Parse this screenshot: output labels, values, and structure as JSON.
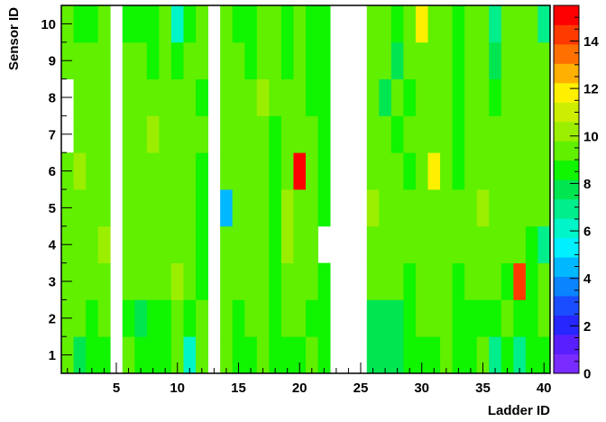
{
  "chart_data": {
    "type": "heatmap",
    "xlabel": "Ladder ID",
    "ylabel": "Sensor ID",
    "x_range": [
      0.5,
      40.5
    ],
    "y_range": [
      0.5,
      10.5
    ],
    "x_ticks": [
      5,
      10,
      15,
      20,
      25,
      30,
      35,
      40
    ],
    "y_ticks": [
      1,
      2,
      3,
      4,
      5,
      6,
      7,
      8,
      9,
      10
    ],
    "z_range": [
      0,
      15.5
    ],
    "colorbar_ticks": [
      0,
      2,
      4,
      6,
      8,
      10,
      12,
      14
    ],
    "colorbar_colors": [
      "#7a2bff",
      "#5a1fff",
      "#2626ff",
      "#1a4dff",
      "#0a84ff",
      "#00b8ff",
      "#00f0ff",
      "#00f5c8",
      "#00ee8c",
      "#00e650",
      "#10f500",
      "#60f000",
      "#9cee00",
      "#ccee00",
      "#fff000",
      "#ffb000",
      "#ff7000",
      "#ff3a00",
      "#ff0000"
    ],
    "x": [
      1,
      2,
      3,
      4,
      5,
      6,
      7,
      8,
      9,
      10,
      11,
      12,
      13,
      14,
      15,
      16,
      17,
      18,
      19,
      20,
      21,
      22,
      23,
      24,
      25,
      26,
      27,
      28,
      29,
      30,
      31,
      32,
      33,
      34,
      35,
      36,
      37,
      38,
      39,
      40
    ],
    "y": [
      1,
      2,
      3,
      4,
      5,
      6,
      7,
      8,
      9,
      10
    ],
    "z": [
      [
        9.5,
        7.5,
        8.5,
        8.5,
        null,
        9,
        8.5,
        8.5,
        8.5,
        9,
        6.5,
        9,
        null,
        9,
        8.5,
        8.5,
        9,
        8.5,
        8.5,
        8.5,
        9,
        8.5,
        null,
        null,
        null,
        7.5,
        7.5,
        7.5,
        8.5,
        8.5,
        8.5,
        9,
        8.5,
        8.5,
        9,
        7,
        8.5,
        7,
        8.5,
        8.5
      ],
      [
        9.5,
        9,
        8.5,
        9,
        null,
        8.5,
        7.5,
        8.5,
        8.5,
        9,
        8.5,
        9,
        null,
        9,
        8.5,
        9,
        9,
        8.5,
        9,
        9,
        8.5,
        8.5,
        null,
        null,
        null,
        7.5,
        7.5,
        7.5,
        8.5,
        9,
        9,
        9,
        8.5,
        8.5,
        8.5,
        8.5,
        9,
        8.5,
        8.5,
        9
      ],
      [
        9.5,
        9,
        9,
        9,
        null,
        9,
        9,
        9.5,
        9.5,
        10,
        9,
        8.5,
        null,
        9,
        9.5,
        9.5,
        9,
        8.5,
        9,
        9.5,
        9,
        8.5,
        null,
        null,
        null,
        9,
        9.5,
        9,
        8.5,
        9.5,
        9.5,
        9,
        8.5,
        9,
        9.5,
        9,
        8.5,
        14.5,
        8.5,
        9
      ],
      [
        9.5,
        9,
        9,
        10,
        null,
        9.5,
        9.5,
        9.5,
        9.5,
        9.5,
        9,
        8.5,
        null,
        9,
        9.5,
        9.5,
        9,
        8.5,
        10,
        9.5,
        9,
        null,
        null,
        null,
        null,
        9.5,
        9.5,
        9.5,
        9,
        9.5,
        9.5,
        9.5,
        9,
        9.5,
        9.5,
        9,
        9,
        9,
        8.5,
        7
      ],
      [
        9.5,
        9.5,
        9.5,
        9.5,
        null,
        9.5,
        9.5,
        9.5,
        9.5,
        9.5,
        9,
        8.5,
        null,
        4.5,
        9.5,
        9.5,
        9,
        8.5,
        10,
        9.5,
        9,
        8.5,
        null,
        null,
        null,
        10,
        9.5,
        9.5,
        9,
        9.5,
        9.5,
        9.5,
        9,
        9.5,
        10.5,
        9,
        9,
        9,
        9,
        9
      ],
      [
        9.5,
        10,
        9.5,
        9,
        null,
        9.5,
        9.5,
        9.5,
        9,
        9,
        9,
        8.5,
        null,
        9.5,
        9.5,
        9.5,
        9,
        8.5,
        9.5,
        15,
        9,
        8.5,
        null,
        null,
        null,
        9.5,
        9.5,
        9,
        8.5,
        9.5,
        12,
        9,
        8.5,
        9,
        9,
        9.5,
        9,
        9,
        9,
        9.5
      ],
      [
        null,
        9.5,
        9,
        9,
        null,
        9.5,
        9,
        10,
        9.5,
        9,
        9.5,
        9.5,
        null,
        9,
        9,
        9.5,
        9,
        8.5,
        9,
        9,
        9,
        8.5,
        null,
        null,
        null,
        9,
        9.5,
        8.5,
        9,
        9,
        9.5,
        9,
        8.5,
        9,
        9,
        9,
        9,
        9,
        9,
        9.5
      ],
      [
        null,
        9,
        9,
        9,
        null,
        9,
        9,
        9.5,
        9,
        9,
        9,
        8.5,
        null,
        9,
        9,
        9.5,
        10,
        9,
        9,
        9,
        8.5,
        8.5,
        null,
        null,
        null,
        9,
        7.5,
        9,
        8.5,
        9,
        9,
        9,
        8.5,
        9,
        9.5,
        8.5,
        9,
        9,
        9.5,
        9
      ],
      [
        9,
        9,
        9,
        9,
        null,
        9,
        9,
        8.5,
        9,
        8.5,
        9,
        9,
        null,
        9,
        9,
        8.5,
        9,
        9,
        8.5,
        9,
        8.5,
        8.5,
        null,
        null,
        null,
        9.5,
        9,
        7.5,
        9,
        9,
        9,
        9,
        8.5,
        9,
        9.5,
        7.5,
        9,
        9,
        9,
        9
      ],
      [
        9,
        8.5,
        8.5,
        9,
        null,
        8.5,
        8.5,
        8.5,
        9,
        6,
        8.5,
        9,
        null,
        9,
        8.5,
        8.5,
        9,
        9,
        8.5,
        9,
        8.5,
        8.5,
        null,
        null,
        null,
        9,
        9,
        8.5,
        9,
        11.5,
        9,
        9,
        8.5,
        9,
        9,
        7,
        9,
        9,
        9,
        7
      ]
    ]
  }
}
